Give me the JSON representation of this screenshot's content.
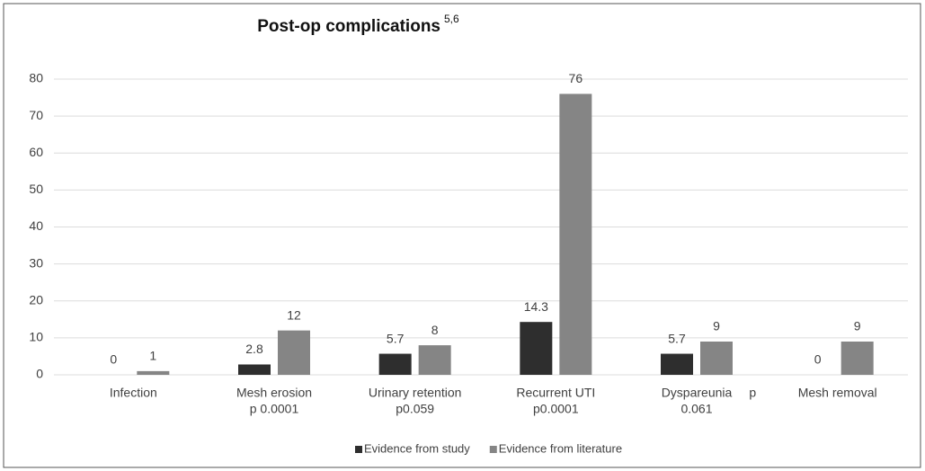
{
  "chart_data": {
    "type": "bar",
    "title": "Post-op complications",
    "title_superscript": "5,6",
    "categories": [
      [
        "Infection"
      ],
      [
        "Mesh erosion",
        "p 0.0001"
      ],
      [
        "Urinary retention",
        "p0.059"
      ],
      [
        "Recurrent UTI",
        "p0.0001"
      ],
      [
        "Dyspareunia",
        "0.061"
      ],
      [
        "Mesh removal"
      ]
    ],
    "annotations": [
      "p"
    ],
    "series": [
      {
        "name": "Evidence from study",
        "color": "#2e2e2e",
        "values": [
          0,
          2.8,
          5.7,
          14.3,
          5.7,
          0
        ]
      },
      {
        "name": "Evidence from literature",
        "color": "#858585",
        "values": [
          1,
          12,
          8,
          76,
          9,
          9
        ]
      }
    ],
    "ylim": [
      0,
      80
    ],
    "yticks": [
      0,
      10,
      20,
      30,
      40,
      50,
      60,
      70,
      80
    ],
    "grid": true,
    "legend": "bottom"
  }
}
